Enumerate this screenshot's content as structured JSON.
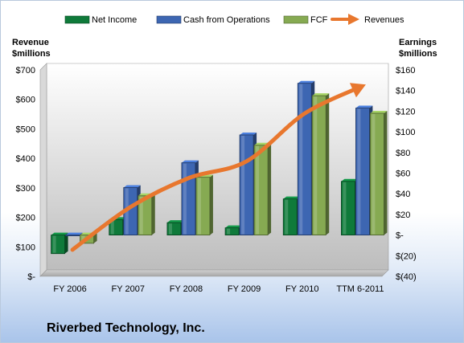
{
  "company": "Riverbed Technology, Inc.",
  "colors": {
    "net_income": "#0f7a3a",
    "cash_from_operations": "#3d66b2",
    "fcf": "#86aa52",
    "revenues": "#e8772e"
  },
  "chart_data": {
    "type": "bar",
    "categories": [
      "FY 2006",
      "FY 2007",
      "FY 2008",
      "FY 2009",
      "FY 2010",
      "TTM 6-2011"
    ],
    "series": [
      {
        "name": "Net Income",
        "axis": "right",
        "values": [
          -18,
          15,
          12,
          7,
          35,
          52
        ]
      },
      {
        "name": "Cash from Operations",
        "axis": "right",
        "values": [
          0,
          46,
          70,
          97,
          147,
          123
        ]
      },
      {
        "name": "FCF",
        "axis": "right",
        "values": [
          -8,
          38,
          56,
          87,
          135,
          118
        ]
      },
      {
        "name": "Revenues",
        "type": "line",
        "axis": "left",
        "values": [
          90,
          235,
          333,
          390,
          552,
          645
        ]
      }
    ],
    "y_left": {
      "title_line1": "Revenue",
      "title_line2": "$millions",
      "ylim": [
        0,
        700
      ],
      "ticks": [
        0,
        100,
        200,
        300,
        400,
        500,
        600,
        700
      ],
      "tick_labels": [
        "$-",
        "$100",
        "$200",
        "$300",
        "$400",
        "$500",
        "$600",
        "$700"
      ]
    },
    "y_right": {
      "title_line1": "Earnings",
      "title_line2": "$millions",
      "ylim": [
        -40,
        160
      ],
      "ticks": [
        -40,
        -20,
        0,
        20,
        40,
        60,
        80,
        100,
        120,
        140,
        160
      ],
      "tick_labels": [
        "$(40)",
        "$(20)",
        "$-",
        "$20",
        "$40",
        "$60",
        "$80",
        "$100",
        "$120",
        "$140",
        "$160"
      ]
    },
    "legend_position": "top",
    "grid": false
  }
}
